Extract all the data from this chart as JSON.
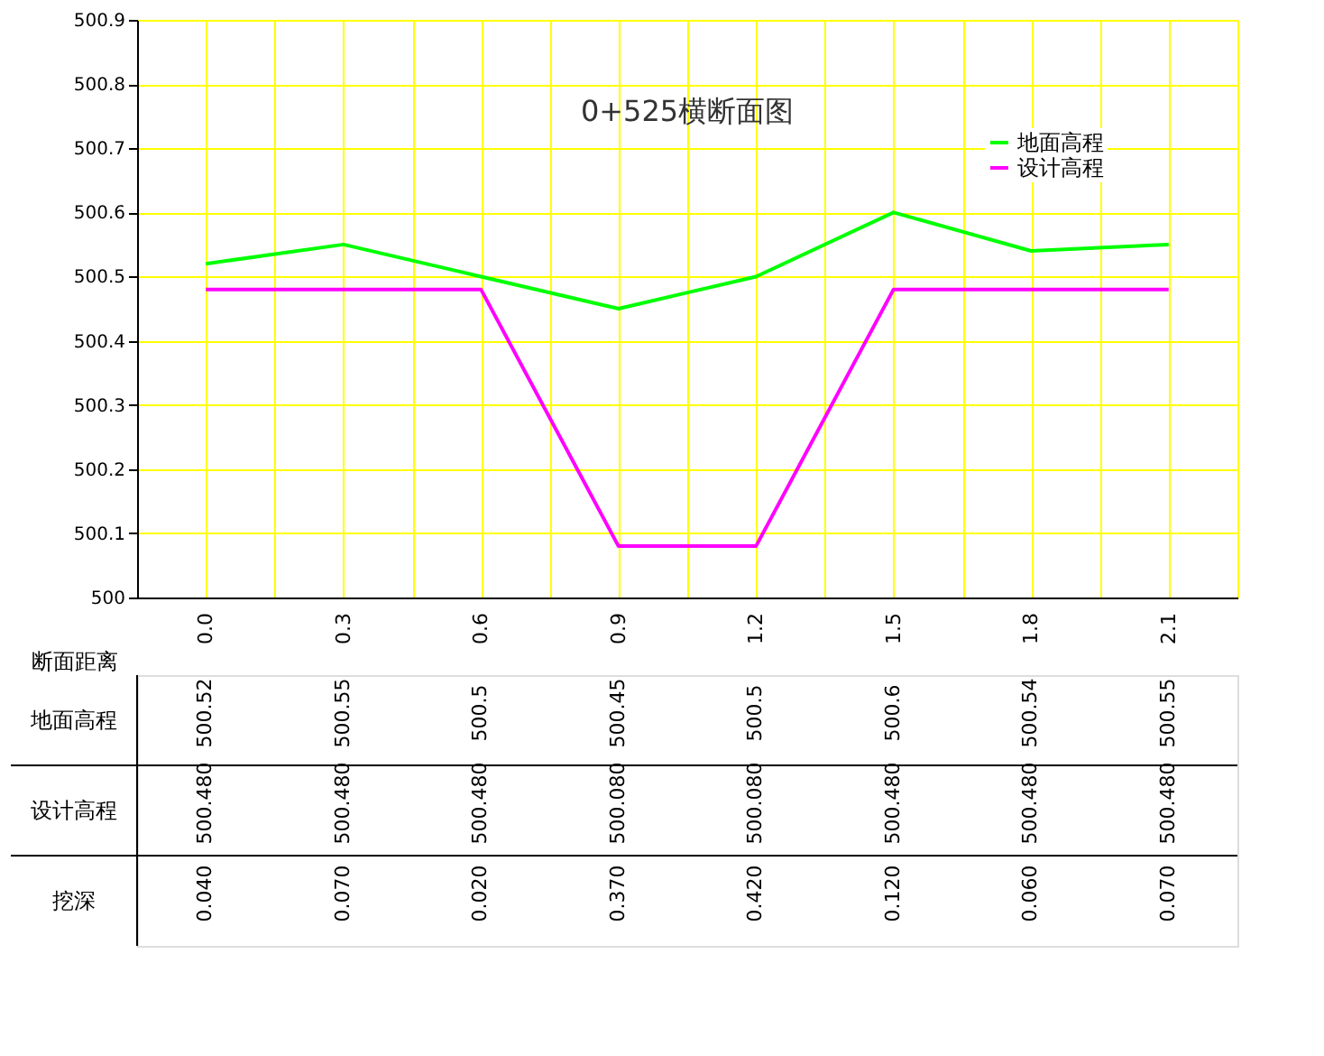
{
  "chart_data": {
    "type": "line",
    "title": "0+525横断面图",
    "xlabel": "断面距离",
    "x": [
      0,
      0.3,
      0.6,
      0.9,
      1.2,
      1.5,
      1.8,
      2.1
    ],
    "series": [
      {
        "name": "地面高程",
        "color": "#00ff00",
        "values": [
          500.52,
          500.55,
          500.5,
          500.45,
          500.5,
          500.6,
          500.54,
          500.55
        ]
      },
      {
        "name": "设计高程",
        "color": "#ff00ff",
        "values": [
          500.48,
          500.48,
          500.48,
          500.08,
          500.08,
          500.48,
          500.48,
          500.48
        ]
      }
    ],
    "annotations": [
      "500.52",
      "500.55",
      "500.5",
      "500.45",
      "500.5",
      "500.6",
      "500.54",
      "500.55",
      "500.480",
      "500.480",
      "500.480",
      "500.080",
      "500.080",
      "500.480",
      "500.480",
      "500.480",
      "挖深",
      "0.040",
      "0.070",
      "0.020",
      "0.370",
      "0.420",
      "0.120",
      "0.060",
      "0.070"
    ],
    "xlim": [
      -0.15,
      2.25
    ],
    "xticks": [
      {
        "value": -0.15,
        "label": null
      },
      {
        "value": 0,
        "label": "0.0"
      },
      {
        "value": 0.15,
        "label": null
      },
      0.3,
      {
        "value": 0.45,
        "label": null
      },
      0.6,
      {
        "value": 0.75,
        "label": null
      },
      0.9,
      {
        "value": 1.05,
        "label": null
      },
      1.2,
      {
        "value": 1.35,
        "label": null
      },
      1.5,
      {
        "value": 1.65,
        "label": null
      },
      1.8,
      {
        "value": 1.95,
        "label": null
      },
      2.1,
      {
        "value": 2.25,
        "label": null
      }
    ],
    "ylim": [
      500,
      500.9
    ],
    "yticks": [
      500,
      500.1,
      500.2,
      500.3,
      500.4,
      500.5,
      500.6,
      500.7,
      500.8,
      500.9
    ],
    "grid": true,
    "legend": "top right",
    "line_style": "solid"
  }
}
